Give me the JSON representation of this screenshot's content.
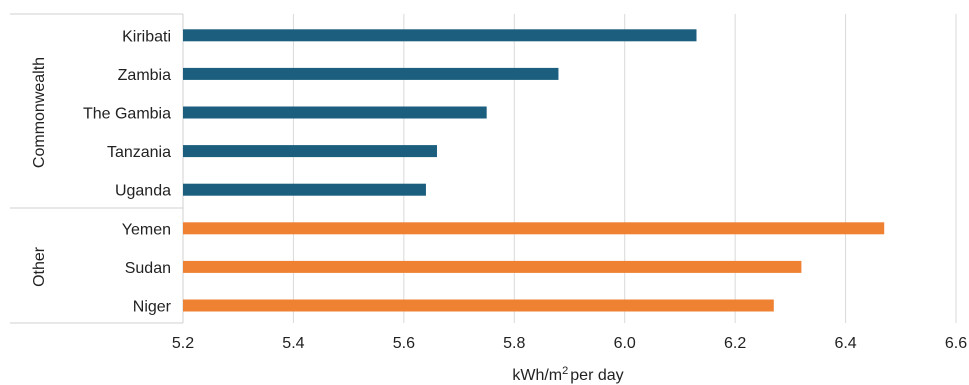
{
  "chart_data": {
    "type": "bar",
    "orientation": "horizontal",
    "xlabel_main": "kWh/m",
    "xlabel_sup": "2",
    "xlabel_rest": "per day",
    "xlim": [
      5.2,
      6.6
    ],
    "x_ticks": [
      "5.2",
      "5.4",
      "5.6",
      "5.8",
      "6.0",
      "6.2",
      "6.4",
      "6.6"
    ],
    "grid": true,
    "groups": [
      {
        "name": "Commonwealth",
        "color": "#1b5e7e",
        "categories": [
          "Kiribati",
          "Zambia",
          "The Gambia",
          "Tanzania",
          "Uganda"
        ],
        "values": [
          6.13,
          5.88,
          5.75,
          5.66,
          5.64
        ]
      },
      {
        "name": "Other",
        "color": "#ef8132",
        "categories": [
          "Yemen",
          "Sudan",
          "Niger"
        ],
        "values": [
          6.47,
          6.32,
          6.27
        ]
      }
    ]
  }
}
